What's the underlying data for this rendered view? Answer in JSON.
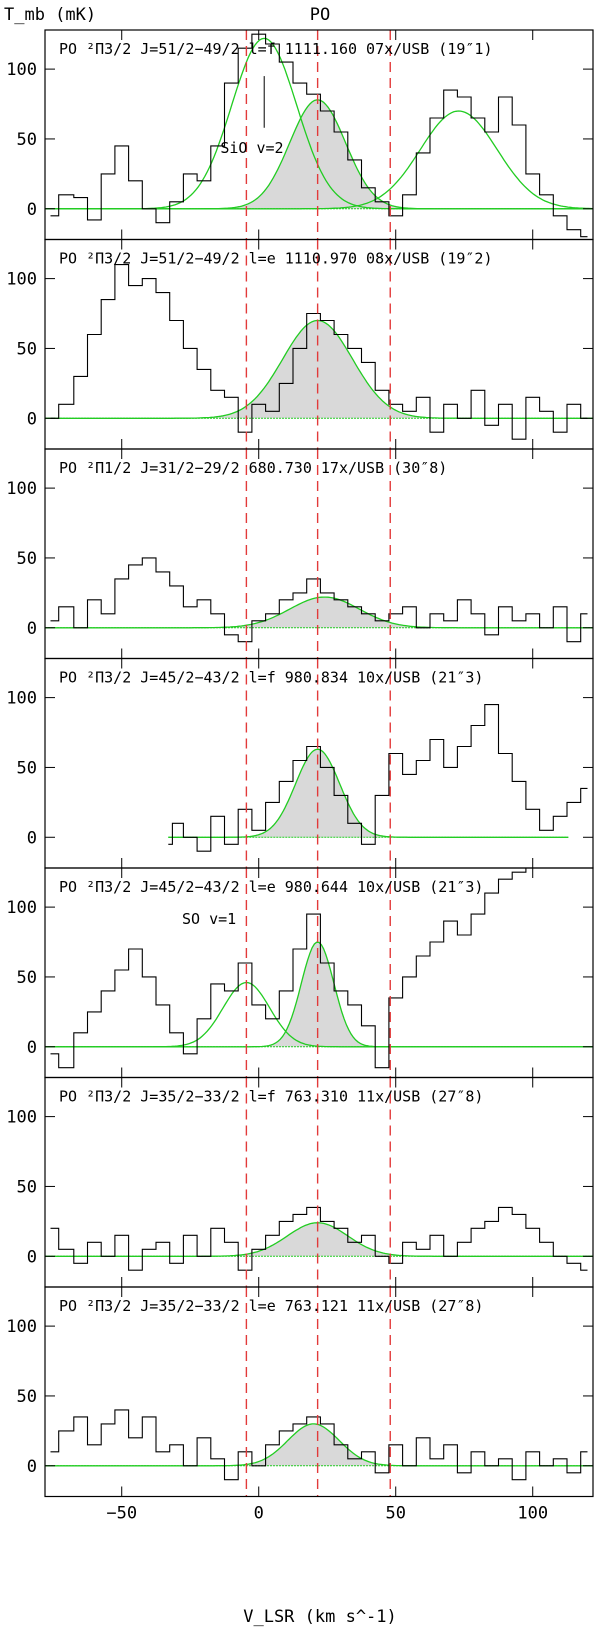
{
  "chart_data": {
    "type": "line",
    "title": "PO",
    "ylabel": "T_mb (mK)",
    "xlabel": "V_LSR (km s^-1)",
    "xlim": [
      -78,
      122
    ],
    "x_ticks": [
      -50,
      0,
      50,
      100
    ],
    "x_tick_labels": [
      "−50",
      "0",
      "50",
      "100"
    ],
    "y_ticks": [
      0,
      50,
      100
    ],
    "y_tick_labels": [
      "0",
      "50",
      "100"
    ],
    "reference_lines_velocity": [
      -4.5,
      21.5,
      48
    ],
    "colors": {
      "data": "#000000",
      "fit": "#22cc22",
      "shade": "#d9d9d9",
      "reference": "#e23a3a"
    },
    "panels": [
      {
        "label": "PO ²Π3/2 J=51/2−49/2 l=f   1111.160 07x/USB (19″1)",
        "ylim": [
          -22,
          128
        ],
        "fits": [
          {
            "name": "PO",
            "amp": 78,
            "center": 21.5,
            "fwhm": 24,
            "filled": true
          },
          {
            "amp": 122,
            "center": 2,
            "fwhm": 28,
            "filled": false
          },
          {
            "amp": 70,
            "center": 73,
            "fwhm": 33,
            "filled": false
          }
        ],
        "annotations": [
          {
            "text": "SiO v=2",
            "x": -14,
            "y": 40,
            "marker_x": 2,
            "marker_y1": 58,
            "marker_y2": 95
          }
        ],
        "spectrum": {
          "x": [
            -76,
            -70,
            -65,
            -60,
            -55,
            -50,
            -45,
            -40,
            -35,
            -30,
            -25,
            -20,
            -15,
            -10,
            -5,
            0,
            5,
            10,
            15,
            20,
            25,
            30,
            35,
            40,
            45,
            50,
            55,
            60,
            65,
            70,
            75,
            80,
            85,
            90,
            95,
            100,
            105,
            110,
            115,
            120
          ],
          "y": [
            -5,
            10,
            8,
            -8,
            25,
            45,
            20,
            0,
            -10,
            5,
            25,
            20,
            45,
            90,
            115,
            125,
            118,
            105,
            90,
            82,
            70,
            55,
            35,
            15,
            5,
            -5,
            10,
            40,
            65,
            85,
            80,
            65,
            55,
            80,
            60,
            25,
            10,
            -5,
            -15,
            -20
          ]
        }
      },
      {
        "label": "PO ²Π3/2 J=51/2−49/2 l=e   1110.970 08x/USB (19″2)",
        "ylim": [
          -22,
          128
        ],
        "fits": [
          {
            "name": "PO",
            "amp": 70,
            "center": 21.5,
            "fwhm": 30,
            "filled": true
          }
        ],
        "annotations": [],
        "spectrum": {
          "x": [
            -76,
            -70,
            -65,
            -60,
            -55,
            -50,
            -45,
            -40,
            -35,
            -30,
            -25,
            -20,
            -15,
            -10,
            -5,
            0,
            5,
            10,
            15,
            20,
            25,
            30,
            35,
            40,
            45,
            50,
            55,
            60,
            65,
            70,
            75,
            80,
            85,
            90,
            95,
            100,
            105,
            110,
            115,
            120
          ],
          "y": [
            0,
            10,
            30,
            60,
            85,
            110,
            95,
            100,
            90,
            70,
            50,
            35,
            20,
            15,
            -10,
            10,
            5,
            25,
            50,
            75,
            70,
            60,
            50,
            40,
            20,
            10,
            5,
            15,
            -10,
            10,
            0,
            20,
            -5,
            10,
            -15,
            15,
            5,
            -10,
            10,
            0
          ]
        }
      },
      {
        "label": "PO ²Π1/2 J=31/2−29/2     680.730 17x/USB (30″8)",
        "ylim": [
          -22,
          128
        ],
        "fits": [
          {
            "name": "PO",
            "amp": 22,
            "center": 24,
            "fwhm": 30,
            "filled": true
          }
        ],
        "annotations": [],
        "spectrum": {
          "x": [
            -76,
            -70,
            -65,
            -60,
            -55,
            -50,
            -45,
            -40,
            -35,
            -30,
            -25,
            -20,
            -15,
            -10,
            -5,
            0,
            5,
            10,
            15,
            20,
            25,
            30,
            35,
            40,
            45,
            50,
            55,
            60,
            65,
            70,
            75,
            80,
            85,
            90,
            95,
            100,
            105,
            110,
            115,
            120
          ],
          "y": [
            5,
            15,
            0,
            20,
            10,
            35,
            45,
            50,
            40,
            30,
            15,
            20,
            10,
            -5,
            -10,
            5,
            10,
            20,
            25,
            35,
            25,
            20,
            15,
            10,
            5,
            10,
            15,
            0,
            10,
            5,
            20,
            10,
            -5,
            15,
            5,
            10,
            0,
            15,
            -10,
            10
          ]
        }
      },
      {
        "label": "PO ²Π3/2 J=45/2−43/2 l=f    980.834 10x/USB (21″3)",
        "ylim": [
          -22,
          128
        ],
        "fits": [
          {
            "name": "PO",
            "amp": 63,
            "center": 21.5,
            "fwhm": 19,
            "filled": true,
            "x_range": [
              -33,
              113
            ]
          }
        ],
        "annotations": [],
        "spectrum": {
          "x": [
            -33,
            -30,
            -25,
            -20,
            -15,
            -10,
            -5,
            0,
            5,
            10,
            15,
            20,
            25,
            30,
            35,
            40,
            45,
            50,
            55,
            60,
            65,
            70,
            75,
            80,
            85,
            90,
            95,
            100,
            105,
            110,
            115,
            120
          ],
          "y": [
            -5,
            10,
            0,
            -10,
            15,
            -5,
            20,
            5,
            25,
            40,
            55,
            65,
            50,
            30,
            10,
            -5,
            30,
            60,
            45,
            55,
            70,
            50,
            65,
            80,
            95,
            60,
            40,
            20,
            5,
            15,
            25,
            35
          ]
        }
      },
      {
        "label": "PO ²Π3/2 J=45/2−43/2 l=e    980.644 10x/USB (21″3)",
        "ylim": [
          -22,
          128
        ],
        "fits": [
          {
            "name": "PO",
            "amp": 75,
            "center": 21.5,
            "fwhm": 14,
            "filled": true
          },
          {
            "amp": 46,
            "center": -4.5,
            "fwhm": 20,
            "filled": false
          }
        ],
        "annotations": [
          {
            "text": "SO v=1",
            "x": -28,
            "y": 88
          }
        ],
        "spectrum": {
          "x": [
            -76,
            -70,
            -65,
            -60,
            -55,
            -50,
            -45,
            -40,
            -35,
            -30,
            -25,
            -20,
            -15,
            -10,
            -5,
            0,
            5,
            10,
            15,
            20,
            25,
            30,
            35,
            40,
            45,
            50,
            55,
            60,
            65,
            70,
            75,
            80,
            85,
            90,
            95,
            100,
            105,
            110,
            115,
            120
          ],
          "y": [
            -5,
            -15,
            10,
            25,
            40,
            55,
            70,
            50,
            30,
            10,
            -5,
            20,
            45,
            40,
            60,
            30,
            20,
            40,
            70,
            95,
            60,
            40,
            30,
            15,
            -15,
            35,
            50,
            65,
            75,
            90,
            80,
            95,
            110,
            120,
            125,
            128,
            128,
            128,
            128,
            128
          ]
        }
      },
      {
        "label": "PO ²Π3/2 J=35/2−33/2 l=f    763.310 11x/USB (27″8)",
        "ylim": [
          -22,
          128
        ],
        "fits": [
          {
            "name": "PO",
            "amp": 24,
            "center": 21.5,
            "fwhm": 26,
            "filled": true
          }
        ],
        "annotations": [],
        "spectrum": {
          "x": [
            -76,
            -70,
            -65,
            -60,
            -55,
            -50,
            -45,
            -40,
            -35,
            -30,
            -25,
            -20,
            -15,
            -10,
            -5,
            0,
            5,
            10,
            15,
            20,
            25,
            30,
            35,
            40,
            45,
            50,
            55,
            60,
            65,
            70,
            75,
            80,
            85,
            90,
            95,
            100,
            105,
            110,
            115,
            120
          ],
          "y": [
            20,
            5,
            -5,
            10,
            0,
            15,
            -10,
            5,
            10,
            -5,
            15,
            0,
            20,
            10,
            -10,
            5,
            15,
            25,
            30,
            35,
            25,
            20,
            10,
            15,
            0,
            -5,
            10,
            5,
            15,
            0,
            10,
            20,
            25,
            35,
            30,
            20,
            10,
            0,
            -5,
            -10
          ]
        }
      },
      {
        "label": "PO ²Π3/2 J=35/2−33/2 l=e    763.121 11x/USB (27″8)",
        "ylim": [
          -22,
          128
        ],
        "fits": [
          {
            "name": "PO",
            "amp": 30,
            "center": 20,
            "fwhm": 22,
            "filled": true
          }
        ],
        "annotations": [],
        "spectrum": {
          "x": [
            -76,
            -70,
            -65,
            -60,
            -55,
            -50,
            -45,
            -40,
            -35,
            -30,
            -25,
            -20,
            -15,
            -10,
            -5,
            0,
            5,
            10,
            15,
            20,
            25,
            30,
            35,
            40,
            45,
            50,
            55,
            60,
            65,
            70,
            75,
            80,
            85,
            90,
            95,
            100,
            105,
            110,
            115,
            120
          ],
          "y": [
            10,
            25,
            35,
            15,
            30,
            40,
            20,
            35,
            10,
            15,
            0,
            20,
            5,
            -10,
            10,
            0,
            15,
            25,
            30,
            35,
            30,
            15,
            5,
            10,
            -5,
            15,
            0,
            20,
            5,
            15,
            -5,
            10,
            0,
            5,
            -10,
            10,
            0,
            5,
            -5,
            10
          ]
        }
      }
    ]
  }
}
